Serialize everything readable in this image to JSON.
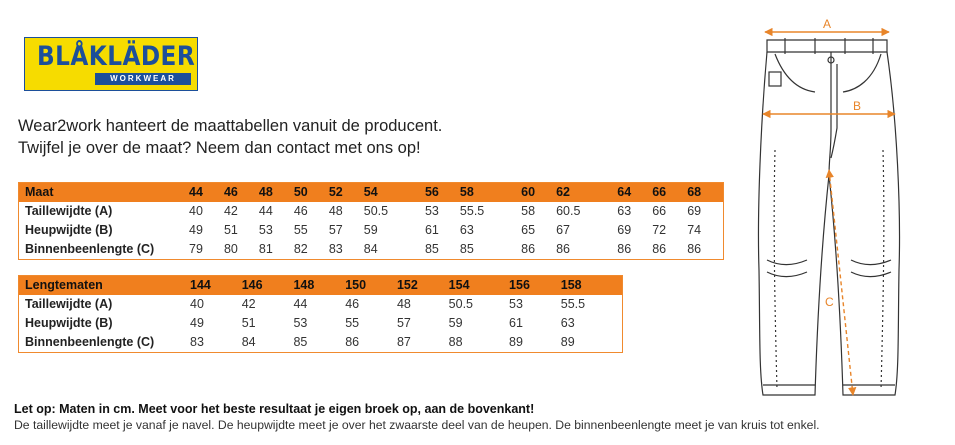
{
  "logo": {
    "brand": "BLÅKLÄDER",
    "sub": "WORKWEAR"
  },
  "intro": {
    "line1": "Wear2work hanteert de maattabellen vanuit de producent.",
    "line2": "Twijfel je over de maat? Neem dan contact met ons op!"
  },
  "table1": {
    "headers": [
      "Maat",
      "44",
      "46",
      "48",
      "50",
      "52",
      "54",
      "56",
      "58",
      "60",
      "62",
      "64",
      "66",
      "68"
    ],
    "rows": [
      [
        "Taillewijdte (A)",
        "40",
        "42",
        "44",
        "46",
        "48",
        "50.5",
        "53",
        "55.5",
        "58",
        "60.5",
        "63",
        "66",
        "69"
      ],
      [
        "Heupwijdte (B)",
        "49",
        "51",
        "53",
        "55",
        "57",
        "59",
        "61",
        "63",
        "65",
        "67",
        "69",
        "72",
        "74"
      ],
      [
        "Binnenbeenlengte (C)",
        "79",
        "80",
        "81",
        "82",
        "83",
        "84",
        "85",
        "85",
        "86",
        "86",
        "86",
        "86",
        "86"
      ]
    ]
  },
  "table2": {
    "headers": [
      "Lengtematen",
      "144",
      "146",
      "148",
      "150",
      "152",
      "154",
      "156",
      "158"
    ],
    "rows": [
      [
        "Taillewijdte (A)",
        "40",
        "42",
        "44",
        "46",
        "48",
        "50.5",
        "53",
        "55.5"
      ],
      [
        "Heupwijdte (B)",
        "49",
        "51",
        "53",
        "55",
        "57",
        "59",
        "61",
        "63"
      ],
      [
        "Binnenbeenlengte (C)",
        "83",
        "84",
        "85",
        "86",
        "87",
        "88",
        "89",
        "89"
      ]
    ]
  },
  "note": {
    "bold": "Let op: Maten in cm. Meet voor het beste resultaat je eigen broek op, aan de bovenkant!",
    "normal": "De taillewijdte meet je vanaf je navel. De heupwijdte meet je over het zwaarste deel van de heupen. De binnenbeenlengte meet je van kruis tot enkel."
  },
  "figure": {
    "label_a": "A",
    "label_b": "B",
    "label_c": "C",
    "accent": "#e8852a",
    "line": "#333333"
  }
}
